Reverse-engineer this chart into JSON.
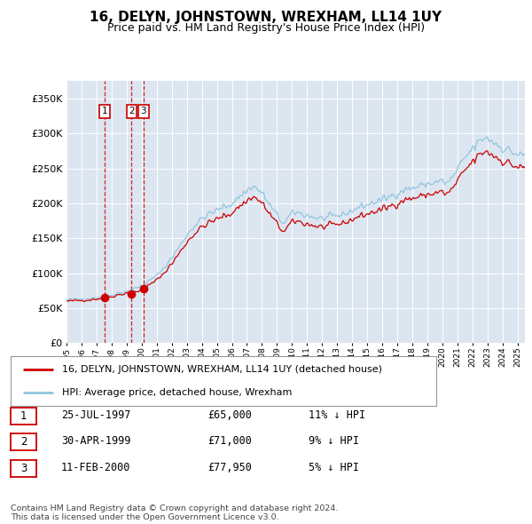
{
  "title": "16, DELYN, JOHNSTOWN, WREXHAM, LL14 1UY",
  "subtitle": "Price paid vs. HM Land Registry's House Price Index (HPI)",
  "plot_bg_color": "#dce6f1",
  "legend_line1": "16, DELYN, JOHNSTOWN, WREXHAM, LL14 1UY (detached house)",
  "legend_line2": "HPI: Average price, detached house, Wrexham",
  "sale_year_floats": [
    1997.56,
    1999.33,
    2000.11
  ],
  "sale_prices": [
    65000,
    71000,
    77950
  ],
  "sale_labels": [
    "1",
    "2",
    "3"
  ],
  "table_rows": [
    [
      "1",
      "25-JUL-1997",
      "£65,000",
      "11% ↓ HPI"
    ],
    [
      "2",
      "30-APR-1999",
      "£71,000",
      "9% ↓ HPI"
    ],
    [
      "3",
      "11-FEB-2000",
      "£77,950",
      "5% ↓ HPI"
    ]
  ],
  "footer": "Contains HM Land Registry data © Crown copyright and database right 2024.\nThis data is licensed under the Open Government Licence v3.0.",
  "ylim": [
    0,
    375000
  ],
  "yticks": [
    0,
    50000,
    100000,
    150000,
    200000,
    250000,
    300000,
    350000
  ],
  "ytick_labels": [
    "£0",
    "£50K",
    "£100K",
    "£150K",
    "£200K",
    "£250K",
    "£300K",
    "£350K"
  ],
  "sale_color": "#cc0000",
  "hpi_color": "#92c5de",
  "vline_color": "#cc0000",
  "xlim_start": 1995.0,
  "xlim_end": 2025.5
}
